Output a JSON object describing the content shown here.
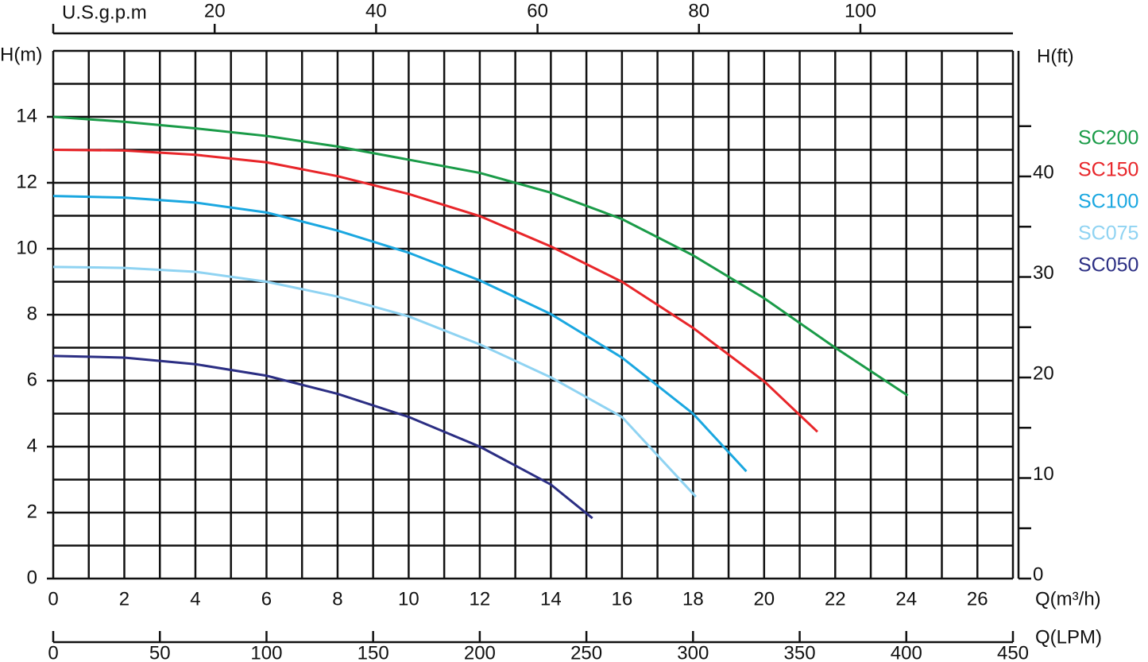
{
  "chart_data": {
    "type": "line",
    "y_label": "H(m)",
    "y2_label": "H(ft)",
    "x_label": "Q(m³/h)",
    "lpm_label": "Q(LPM)",
    "gpm_label": "U.S.g.p.m",
    "xlim": [
      0,
      27
    ],
    "xticks": [
      0,
      2,
      4,
      6,
      8,
      10,
      12,
      14,
      16,
      18,
      20,
      22,
      24,
      26
    ],
    "x_minor_ticks": [
      0,
      1,
      2,
      3,
      4,
      5,
      6,
      7,
      8,
      9,
      10,
      11,
      12,
      13,
      14,
      15,
      16,
      17,
      18,
      19,
      20,
      21,
      22,
      23,
      24,
      25,
      26,
      27
    ],
    "ylim": [
      0,
      16
    ],
    "yticks": [
      0,
      2,
      4,
      6,
      8,
      10,
      12,
      14
    ],
    "y_minor_ticks": [
      0,
      1,
      2,
      3,
      4,
      5,
      6,
      7,
      8,
      9,
      10,
      11,
      12,
      13,
      14,
      15,
      16
    ],
    "y2lim": [
      0,
      52.49
    ],
    "y2ticks": [
      0,
      10,
      20,
      30,
      40
    ],
    "y2_minor_ticks": [
      5,
      15,
      25,
      35,
      45
    ],
    "lpm_lim": [
      0,
      450
    ],
    "lpm_ticks": [
      0,
      50,
      100,
      150,
      200,
      250,
      300,
      350,
      400,
      450
    ],
    "gpm_lim": [
      0,
      118.9
    ],
    "gpm_ticks": [
      20,
      40,
      60,
      80,
      100
    ],
    "grid": true,
    "legend": "right",
    "series": [
      {
        "name": "SC200",
        "color": "#1a9b48",
        "x": [
          0,
          2,
          4,
          6,
          8,
          10,
          12,
          14,
          16,
          18,
          20,
          22,
          24.04
        ],
        "values": [
          14,
          13.85,
          13.65,
          13.42,
          13.1,
          12.7,
          12.3,
          11.7,
          10.9,
          9.8,
          8.5,
          7.0,
          5.55
        ]
      },
      {
        "name": "SC150",
        "color": "#e8262a",
        "x": [
          0,
          2,
          4,
          6,
          8,
          10,
          12,
          14,
          16,
          18,
          20,
          21.5
        ],
        "values": [
          13,
          12.98,
          12.85,
          12.62,
          12.2,
          11.66,
          10.99,
          10.07,
          9.0,
          7.6,
          5.98,
          4.45
        ]
      },
      {
        "name": "SC100",
        "color": "#1aa7e0",
        "x": [
          0,
          2,
          4,
          6,
          8,
          10,
          12,
          14,
          16,
          18,
          19.5
        ],
        "values": [
          11.6,
          11.55,
          11.4,
          11.1,
          10.55,
          9.88,
          9.04,
          8.02,
          6.7,
          5.0,
          3.25
        ]
      },
      {
        "name": "SC075",
        "color": "#8fd3f2",
        "x": [
          0,
          2,
          4,
          6,
          8,
          10,
          12,
          14,
          16,
          18.08
        ],
        "values": [
          9.45,
          9.42,
          9.3,
          9.0,
          8.55,
          7.95,
          7.1,
          6.1,
          4.9,
          2.48
        ]
      },
      {
        "name": "SC050",
        "color": "#2b2e83",
        "x": [
          0,
          2,
          4,
          6,
          8,
          10,
          12,
          14,
          15.17
        ],
        "values": [
          6.75,
          6.7,
          6.5,
          6.15,
          5.6,
          4.9,
          4.0,
          2.85,
          1.83
        ]
      }
    ]
  }
}
